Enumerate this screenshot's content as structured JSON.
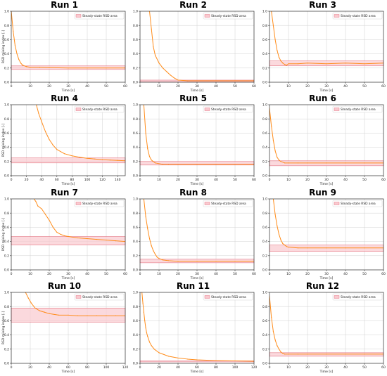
{
  "common": {
    "xlabel": "Time [s]",
    "ylabel": "RSD mixing index [-]",
    "legend_label": "Steady-state RSD area",
    "legend_position": "top-right",
    "grid": true,
    "line_color": "#ff8c1a",
    "band_fill": "#f9c9cf",
    "band_edge": "#e06070"
  },
  "chart_data": [
    {
      "title": "Run 1",
      "type": "line",
      "xlim": [
        0,
        60
      ],
      "ylim": [
        0,
        1
      ],
      "xticks": [
        0,
        10,
        20,
        30,
        40,
        50,
        60
      ],
      "yticks": [
        0,
        0.2,
        0.4,
        0.6,
        0.8,
        1.0
      ],
      "band": [
        0.18,
        0.23
      ],
      "series": [
        {
          "x": [
            0,
            1,
            2,
            3,
            4,
            5,
            6,
            8,
            10,
            15,
            20,
            30,
            40,
            50,
            60
          ],
          "y": [
            1.0,
            0.72,
            0.52,
            0.4,
            0.32,
            0.27,
            0.24,
            0.22,
            0.21,
            0.21,
            0.205,
            0.2,
            0.2,
            0.2,
            0.2
          ]
        }
      ]
    },
    {
      "title": "Run 2",
      "type": "line",
      "xlim": [
        0,
        60
      ],
      "ylim": [
        0,
        1
      ],
      "xticks": [
        0,
        10,
        20,
        30,
        40,
        50,
        60
      ],
      "yticks": [
        0,
        0.2,
        0.4,
        0.6,
        0.8,
        1.0
      ],
      "band": [
        0.005,
        0.03
      ],
      "series": [
        {
          "x": [
            5,
            6,
            7,
            8,
            10,
            12,
            14,
            16,
            18,
            20,
            25,
            30,
            40,
            50,
            60
          ],
          "y": [
            1.0,
            0.75,
            0.5,
            0.38,
            0.27,
            0.2,
            0.15,
            0.1,
            0.06,
            0.03,
            0.02,
            0.02,
            0.02,
            0.02,
            0.02
          ]
        }
      ]
    },
    {
      "title": "Run 3",
      "type": "line",
      "xlim": [
        0,
        60
      ],
      "ylim": [
        0,
        1
      ],
      "xticks": [
        0,
        10,
        20,
        30,
        40,
        50,
        60
      ],
      "yticks": [
        0,
        0.2,
        0.4,
        0.6,
        0.8,
        1.0
      ],
      "band": [
        0.23,
        0.3
      ],
      "series": [
        {
          "x": [
            1,
            2,
            3,
            4,
            5,
            6,
            7,
            8,
            9,
            10,
            15,
            20,
            30,
            40,
            50,
            60
          ],
          "y": [
            1.0,
            0.8,
            0.6,
            0.45,
            0.35,
            0.3,
            0.27,
            0.25,
            0.24,
            0.26,
            0.26,
            0.27,
            0.26,
            0.27,
            0.26,
            0.27
          ]
        }
      ]
    },
    {
      "title": "Run 4",
      "type": "line",
      "xlim": [
        0,
        150
      ],
      "ylim": [
        0,
        1
      ],
      "xticks": [
        0,
        20,
        40,
        60,
        80,
        100,
        120,
        140
      ],
      "yticks": [
        0,
        0.2,
        0.4,
        0.6,
        0.8,
        1.0
      ],
      "band": [
        0.18,
        0.25
      ],
      "series": [
        {
          "x": [
            33,
            36,
            40,
            45,
            50,
            55,
            60,
            70,
            80,
            90,
            100,
            110,
            120,
            130,
            140,
            150
          ],
          "y": [
            1.0,
            0.88,
            0.76,
            0.62,
            0.51,
            0.43,
            0.37,
            0.31,
            0.28,
            0.26,
            0.245,
            0.235,
            0.225,
            0.22,
            0.215,
            0.21
          ]
        }
      ]
    },
    {
      "title": "Run 5",
      "type": "line",
      "xlim": [
        0,
        60
      ],
      "ylim": [
        0,
        1
      ],
      "xticks": [
        0,
        10,
        20,
        30,
        40,
        50,
        60
      ],
      "yticks": [
        0,
        0.2,
        0.4,
        0.6,
        0.8,
        1.0
      ],
      "band": [
        0.15,
        0.2
      ],
      "series": [
        {
          "x": [
            2,
            3,
            4,
            5,
            6,
            7,
            8,
            10,
            12,
            15,
            20,
            30,
            40,
            50,
            60
          ],
          "y": [
            1.0,
            0.6,
            0.38,
            0.27,
            0.22,
            0.2,
            0.18,
            0.17,
            0.16,
            0.16,
            0.16,
            0.16,
            0.16,
            0.16,
            0.16
          ]
        }
      ]
    },
    {
      "title": "Run 6",
      "type": "line",
      "xlim": [
        0,
        60
      ],
      "ylim": [
        0,
        1
      ],
      "xticks": [
        0,
        10,
        20,
        30,
        40,
        50,
        60
      ],
      "yticks": [
        0,
        0.2,
        0.4,
        0.6,
        0.8,
        1.0
      ],
      "band": [
        0.14,
        0.21
      ],
      "series": [
        {
          "x": [
            0,
            1,
            2,
            3,
            4,
            5,
            6,
            8,
            10,
            15,
            20,
            30,
            40,
            50,
            60
          ],
          "y": [
            0.95,
            0.7,
            0.5,
            0.35,
            0.26,
            0.22,
            0.2,
            0.18,
            0.18,
            0.18,
            0.18,
            0.18,
            0.18,
            0.18,
            0.18
          ]
        }
      ]
    },
    {
      "title": "Run 7",
      "type": "line",
      "xlim": [
        0,
        60
      ],
      "ylim": [
        0,
        1
      ],
      "xticks": [
        0,
        10,
        20,
        30,
        40,
        50,
        60
      ],
      "yticks": [
        0,
        0.2,
        0.4,
        0.6,
        0.8,
        1.0
      ],
      "band": [
        0.35,
        0.47
      ],
      "series": [
        {
          "x": [
            12,
            13,
            14,
            16,
            18,
            20,
            22,
            24,
            26,
            28,
            30,
            35,
            40,
            45,
            50,
            55,
            60
          ],
          "y": [
            1.0,
            0.96,
            0.9,
            0.86,
            0.78,
            0.7,
            0.6,
            0.53,
            0.5,
            0.48,
            0.47,
            0.45,
            0.44,
            0.43,
            0.42,
            0.41,
            0.4
          ]
        }
      ]
    },
    {
      "title": "Run 8",
      "type": "line",
      "xlim": [
        0,
        60
      ],
      "ylim": [
        0,
        1
      ],
      "xticks": [
        0,
        10,
        20,
        30,
        40,
        50,
        60
      ],
      "yticks": [
        0,
        0.2,
        0.4,
        0.6,
        0.8,
        1.0
      ],
      "band": [
        0.1,
        0.15
      ],
      "series": [
        {
          "x": [
            2,
            3,
            4,
            5,
            6,
            7,
            8,
            9,
            10,
            12,
            15,
            20,
            30,
            40,
            50,
            60
          ],
          "y": [
            1.0,
            0.75,
            0.58,
            0.44,
            0.34,
            0.27,
            0.22,
            0.18,
            0.16,
            0.14,
            0.13,
            0.12,
            0.12,
            0.12,
            0.12,
            0.12
          ]
        }
      ]
    },
    {
      "title": "Run 9",
      "type": "line",
      "xlim": [
        0,
        60
      ],
      "ylim": [
        0,
        1
      ],
      "xticks": [
        0,
        10,
        20,
        30,
        40,
        50,
        60
      ],
      "yticks": [
        0,
        0.2,
        0.4,
        0.6,
        0.8,
        1.0
      ],
      "band": [
        0.26,
        0.35
      ],
      "series": [
        {
          "x": [
            2,
            3,
            4,
            5,
            6,
            7,
            8,
            9,
            10,
            15,
            20,
            30,
            40,
            50,
            60
          ],
          "y": [
            1.0,
            0.78,
            0.62,
            0.5,
            0.42,
            0.37,
            0.35,
            0.33,
            0.32,
            0.31,
            0.31,
            0.31,
            0.31,
            0.31,
            0.31
          ]
        }
      ]
    },
    {
      "title": "Run 10",
      "type": "line",
      "xlim": [
        0,
        120
      ],
      "ylim": [
        0,
        1
      ],
      "xticks": [
        0,
        20,
        40,
        60,
        80,
        100,
        120
      ],
      "yticks": [
        0,
        0.2,
        0.4,
        0.6,
        0.8,
        1.0
      ],
      "band": [
        0.58,
        0.78
      ],
      "series": [
        {
          "x": [
            15,
            18,
            21,
            25,
            30,
            35,
            40,
            50,
            60,
            70,
            80,
            90,
            100,
            110,
            120
          ],
          "y": [
            1.0,
            0.92,
            0.85,
            0.78,
            0.74,
            0.72,
            0.7,
            0.68,
            0.68,
            0.67,
            0.67,
            0.67,
            0.67,
            0.67,
            0.67
          ]
        }
      ]
    },
    {
      "title": "Run 11",
      "type": "line",
      "xlim": [
        0,
        120
      ],
      "ylim": [
        0,
        1
      ],
      "xticks": [
        0,
        20,
        40,
        60,
        80,
        100,
        120
      ],
      "yticks": [
        0,
        0.2,
        0.4,
        0.6,
        0.8,
        1.0
      ],
      "band": [
        0.02,
        0.035
      ],
      "series": [
        {
          "x": [
            2,
            3,
            4,
            5,
            6,
            7,
            8,
            10,
            12,
            15,
            20,
            30,
            40,
            50,
            60,
            80,
            100,
            120
          ],
          "y": [
            1.0,
            0.85,
            0.72,
            0.6,
            0.5,
            0.43,
            0.38,
            0.3,
            0.25,
            0.2,
            0.15,
            0.1,
            0.075,
            0.06,
            0.05,
            0.04,
            0.035,
            0.03
          ]
        }
      ]
    },
    {
      "title": "Run 12",
      "type": "line",
      "xlim": [
        0,
        60
      ],
      "ylim": [
        0,
        1
      ],
      "xticks": [
        0,
        10,
        20,
        30,
        40,
        50,
        60
      ],
      "yticks": [
        0,
        0.2,
        0.4,
        0.6,
        0.8,
        1.0
      ],
      "band": [
        0.1,
        0.15
      ],
      "series": [
        {
          "x": [
            0,
            1,
            2,
            3,
            4,
            5,
            6,
            7,
            8,
            10,
            15,
            20,
            30,
            40,
            50,
            60
          ],
          "y": [
            0.95,
            0.65,
            0.45,
            0.33,
            0.25,
            0.2,
            0.16,
            0.14,
            0.13,
            0.13,
            0.13,
            0.13,
            0.13,
            0.13,
            0.13,
            0.13
          ]
        }
      ]
    }
  ]
}
